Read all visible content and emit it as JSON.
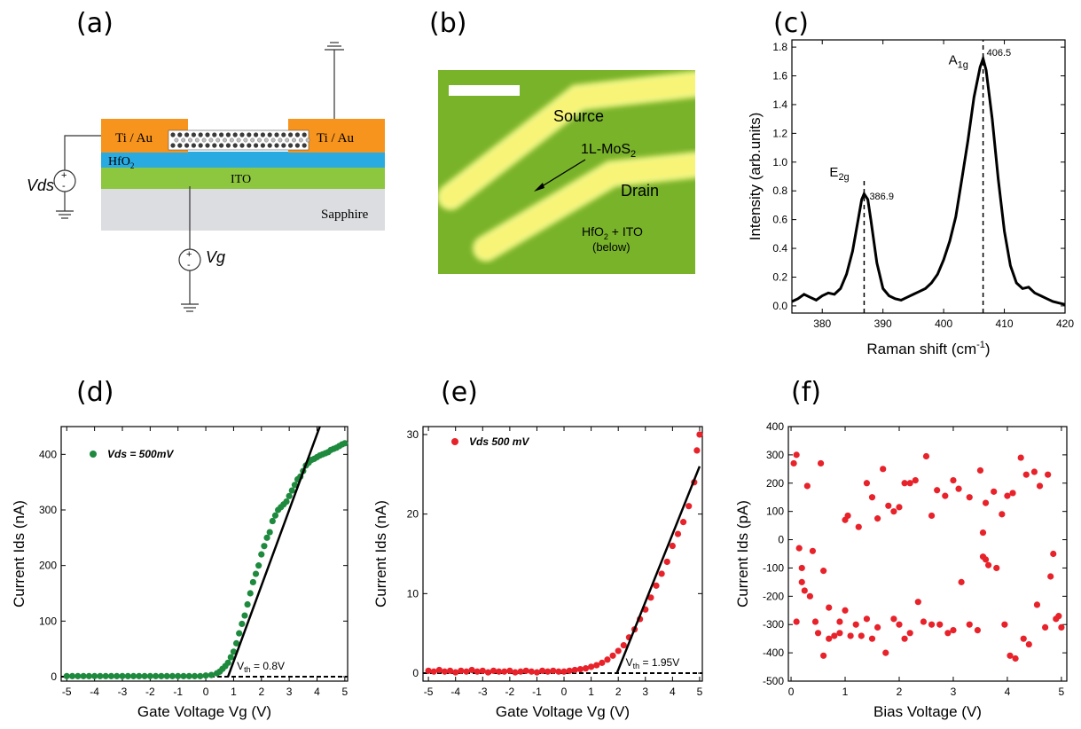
{
  "panels": {
    "a": {
      "label": "(a)",
      "layers": {
        "ti_au_left": "Ti / Au",
        "ti_au_right": "Ti / Au",
        "hfo2": "HfO",
        "hfo2_sub": "2",
        "ito": "ITO",
        "sapphire": "Sapphire"
      },
      "vds": "Vds",
      "vg": "Vg",
      "plus": "+",
      "minus": "-",
      "colors": {
        "ti_au": "#f7941d",
        "hfo2": "#29abe2",
        "ito": "#8dc63f",
        "sapphire": "#dcdde0"
      }
    },
    "b": {
      "label": "(b)",
      "source": "Source",
      "drain": "Drain",
      "mos2": "1L-MoS",
      "mos2_sub": "2",
      "hfo2_ito_1": "HfO",
      "hfo2_ito_sub": "2",
      "hfo2_ito_2": " + ITO",
      "below": "(below)",
      "colors": {
        "background": "#79b32a",
        "electrode": "#f2ef6a"
      }
    },
    "c": {
      "label": "(c)",
      "e2g_main": "E",
      "e2g_sub": "2g",
      "a1g_main": "A",
      "a1g_sub": "1g",
      "e2g_value": "386.9",
      "a1g_value": "406.5"
    },
    "d": {
      "label": "(d)",
      "legend": "Vds = 500mV",
      "vth_label": "V",
      "vth_sub": "th",
      "vth_value": " = 0.8V"
    },
    "e": {
      "label": "(e)",
      "legend": "Vds 500 mV",
      "vth_label": "V",
      "vth_sub": "th",
      "vth_value": " = 1.95V"
    },
    "f": {
      "label": "(f)"
    }
  },
  "chart_data": [
    {
      "panel": "c",
      "type": "line",
      "xlabel_main": "Raman shift (cm",
      "xlabel_sup": "-1",
      "xlabel_end": ")",
      "ylabel": "Intensity (arb.units)",
      "xlim": [
        375,
        420
      ],
      "ylim": [
        -0.05,
        1.85
      ],
      "xticks": [
        "380",
        "390",
        "400",
        "410",
        "420"
      ],
      "yticks": [
        "0.0",
        "0.2",
        "0.4",
        "0.6",
        "0.8",
        "1.0",
        "1.2",
        "1.4",
        "1.6",
        "1.8"
      ],
      "peaks": [
        386.9,
        406.5
      ],
      "x": [
        375,
        376,
        377,
        378,
        379,
        380,
        381,
        382,
        383,
        384,
        385,
        386,
        386.5,
        386.9,
        387.5,
        388,
        389,
        390,
        391,
        392,
        393,
        394,
        395,
        396,
        397,
        398,
        399,
        400,
        401,
        402,
        403,
        404,
        405,
        406,
        406.5,
        407,
        408,
        409,
        410,
        411,
        412,
        413,
        414,
        415,
        416,
        417,
        418,
        419,
        420
      ],
      "y": [
        0.03,
        0.05,
        0.08,
        0.06,
        0.04,
        0.07,
        0.09,
        0.08,
        0.12,
        0.22,
        0.38,
        0.62,
        0.74,
        0.78,
        0.74,
        0.6,
        0.3,
        0.12,
        0.07,
        0.05,
        0.04,
        0.06,
        0.08,
        0.1,
        0.12,
        0.16,
        0.22,
        0.32,
        0.45,
        0.62,
        0.88,
        1.15,
        1.45,
        1.66,
        1.72,
        1.64,
        1.3,
        0.88,
        0.52,
        0.28,
        0.16,
        0.12,
        0.13,
        0.09,
        0.07,
        0.05,
        0.03,
        0.02,
        0.01
      ],
      "grid": false
    },
    {
      "panel": "d",
      "type": "scatter",
      "xlabel": "Gate Voltage Vg (V)",
      "ylabel": "Current Ids (nA)",
      "xlim": [
        -5.2,
        5.1
      ],
      "ylim": [
        -8,
        450
      ],
      "xticks": [
        "-5",
        "-4",
        "-3",
        "-2",
        "-1",
        "0",
        "1",
        "2",
        "3",
        "4",
        "5"
      ],
      "yticks": [
        "0",
        "100",
        "200",
        "300",
        "400"
      ],
      "series": [
        {
          "name": "Vds = 500mV",
          "color": "#1e8a3e"
        }
      ],
      "x": [
        -5,
        -4.8,
        -4.6,
        -4.4,
        -4.2,
        -4,
        -3.8,
        -3.6,
        -3.4,
        -3.2,
        -3,
        -2.8,
        -2.6,
        -2.4,
        -2.2,
        -2,
        -1.8,
        -1.6,
        -1.4,
        -1.2,
        -1,
        -0.8,
        -0.6,
        -0.4,
        -0.2,
        0,
        0.2,
        0.4,
        0.5,
        0.6,
        0.7,
        0.8,
        0.9,
        1,
        1.1,
        1.2,
        1.3,
        1.4,
        1.5,
        1.6,
        1.7,
        1.8,
        1.9,
        2,
        2.1,
        2.2,
        2.3,
        2.4,
        2.5,
        2.6,
        2.7,
        2.8,
        2.9,
        3,
        3.1,
        3.2,
        3.3,
        3.4,
        3.5,
        3.6,
        3.7,
        3.8,
        3.9,
        4,
        4.1,
        4.2,
        4.3,
        4.4,
        4.5,
        4.6,
        4.7,
        4.8,
        4.9,
        5
      ],
      "y": [
        1,
        1,
        1,
        1,
        1,
        1,
        1,
        1,
        1,
        1,
        1,
        1,
        1,
        1,
        1,
        1,
        1,
        1,
        1,
        1,
        1,
        1,
        1,
        1,
        1,
        2,
        3,
        6,
        9,
        14,
        19,
        25,
        35,
        45,
        60,
        78,
        95,
        110,
        130,
        150,
        170,
        185,
        200,
        220,
        235,
        250,
        260,
        280,
        290,
        300,
        305,
        310,
        315,
        325,
        335,
        345,
        355,
        360,
        370,
        380,
        385,
        390,
        392,
        395,
        398,
        400,
        402,
        404,
        408,
        410,
        412,
        415,
        418,
        420
      ],
      "fit_line": {
        "x": [
          0.8,
          4.1
        ],
        "y": [
          0,
          450
        ]
      },
      "vth": 0.8,
      "grid": false
    },
    {
      "panel": "e",
      "type": "scatter",
      "xlabel": "Gate Voltage Vg (V)",
      "ylabel": "Current Ids (nA)",
      "xlim": [
        -5.2,
        5.1
      ],
      "ylim": [
        -1,
        31
      ],
      "xticks": [
        "-5",
        "-4",
        "-3",
        "-2",
        "-1",
        "0",
        "1",
        "2",
        "3",
        "4",
        "5"
      ],
      "yticks": [
        "0",
        "10",
        "20",
        "30"
      ],
      "series": [
        {
          "name": "Vds 500 mV",
          "color": "#e8222a"
        }
      ],
      "x": [
        -5,
        -4.8,
        -4.6,
        -4.4,
        -4.2,
        -4,
        -3.8,
        -3.6,
        -3.4,
        -3.2,
        -3,
        -2.8,
        -2.6,
        -2.4,
        -2.2,
        -2,
        -1.8,
        -1.6,
        -1.4,
        -1.2,
        -1,
        -0.8,
        -0.6,
        -0.4,
        -0.2,
        0,
        0.2,
        0.4,
        0.6,
        0.8,
        1,
        1.2,
        1.4,
        1.6,
        1.8,
        2,
        2.2,
        2.4,
        2.6,
        2.8,
        3,
        3.2,
        3.4,
        3.6,
        3.8,
        4,
        4.2,
        4.4,
        4.6,
        4.8,
        4.9,
        5
      ],
      "y": [
        0.3,
        0.2,
        0.4,
        0.2,
        0.3,
        0.1,
        0.3,
        0.2,
        0.4,
        0.2,
        0.3,
        0.1,
        0.3,
        0.2,
        0.2,
        0.3,
        0.1,
        0.2,
        0.3,
        0.2,
        0.1,
        0.3,
        0.2,
        0.3,
        0.2,
        0.2,
        0.3,
        0.4,
        0.5,
        0.6,
        0.8,
        1.0,
        1.3,
        1.7,
        2.2,
        2.8,
        3.5,
        4.5,
        5.5,
        6.8,
        8,
        9.5,
        11,
        12.5,
        14,
        16,
        17.5,
        19,
        21,
        24,
        28,
        30
      ],
      "fit_line": {
        "x": [
          1.95,
          5.0
        ],
        "y": [
          0,
          26
        ]
      },
      "vth": 1.95,
      "grid": false
    },
    {
      "panel": "f",
      "type": "scatter",
      "xlabel": "Bias Voltage (V)",
      "ylabel": "Current Ids (pA)",
      "xlim": [
        -0.05,
        5.1
      ],
      "ylim": [
        -500,
        400
      ],
      "xticks": [
        "0",
        "1",
        "2",
        "3",
        "4",
        "5"
      ],
      "yticks": [
        "400",
        "300",
        "200",
        "100",
        "0",
        "-100",
        "-200",
        "-300",
        "-400",
        "-500"
      ],
      "series": [
        {
          "name": "",
          "color": "#e8222a"
        }
      ],
      "x": [
        0.05,
        0.1,
        0.15,
        0.2,
        0.3,
        0.4,
        0.55,
        0.6,
        0.7,
        0.9,
        1.0,
        1.05,
        1.25,
        1.4,
        1.5,
        1.6,
        1.7,
        1.8,
        1.9,
        2.0,
        2.1,
        2.2,
        2.3,
        2.5,
        2.6,
        2.7,
        2.85,
        3.0,
        3.1,
        3.3,
        3.5,
        3.6,
        3.75,
        3.9,
        4.0,
        4.1,
        4.25,
        4.35,
        4.5,
        4.6,
        4.75,
        4.85,
        4.95,
        0.1,
        0.2,
        0.25,
        0.35,
        0.45,
        0.5,
        0.6,
        0.7,
        0.8,
        0.9,
        1.0,
        1.1,
        1.2,
        1.3,
        1.4,
        1.5,
        1.6,
        1.75,
        1.9,
        2.0,
        2.1,
        2.2,
        2.35,
        2.45,
        2.6,
        2.75,
        2.9,
        3.0,
        3.15,
        3.3,
        3.45,
        3.55,
        3.65,
        3.8,
        3.95,
        4.05,
        4.15,
        4.3,
        4.4,
        4.55,
        4.7,
        4.8,
        4.9,
        5.0,
        3.55,
        3.6
      ],
      "y": [
        270,
        300,
        -30,
        -100,
        190,
        -40,
        270,
        -110,
        -240,
        -330,
        70,
        85,
        45,
        200,
        150,
        75,
        250,
        120,
        100,
        115,
        200,
        200,
        210,
        295,
        85,
        175,
        155,
        210,
        180,
        150,
        245,
        130,
        170,
        90,
        155,
        165,
        290,
        230,
        240,
        190,
        230,
        -50,
        -270,
        -290,
        -150,
        -180,
        -200,
        -290,
        -330,
        -410,
        -350,
        -340,
        -290,
        -250,
        -340,
        -300,
        -340,
        -280,
        -350,
        -310,
        -400,
        -280,
        -300,
        -350,
        -330,
        -220,
        -290,
        -300,
        -300,
        -330,
        -320,
        -150,
        -300,
        -320,
        -60,
        -90,
        -100,
        -300,
        -410,
        -420,
        -350,
        -370,
        -230,
        -310,
        -130,
        -280,
        -310,
        25,
        -70
      ],
      "grid": false
    }
  ]
}
